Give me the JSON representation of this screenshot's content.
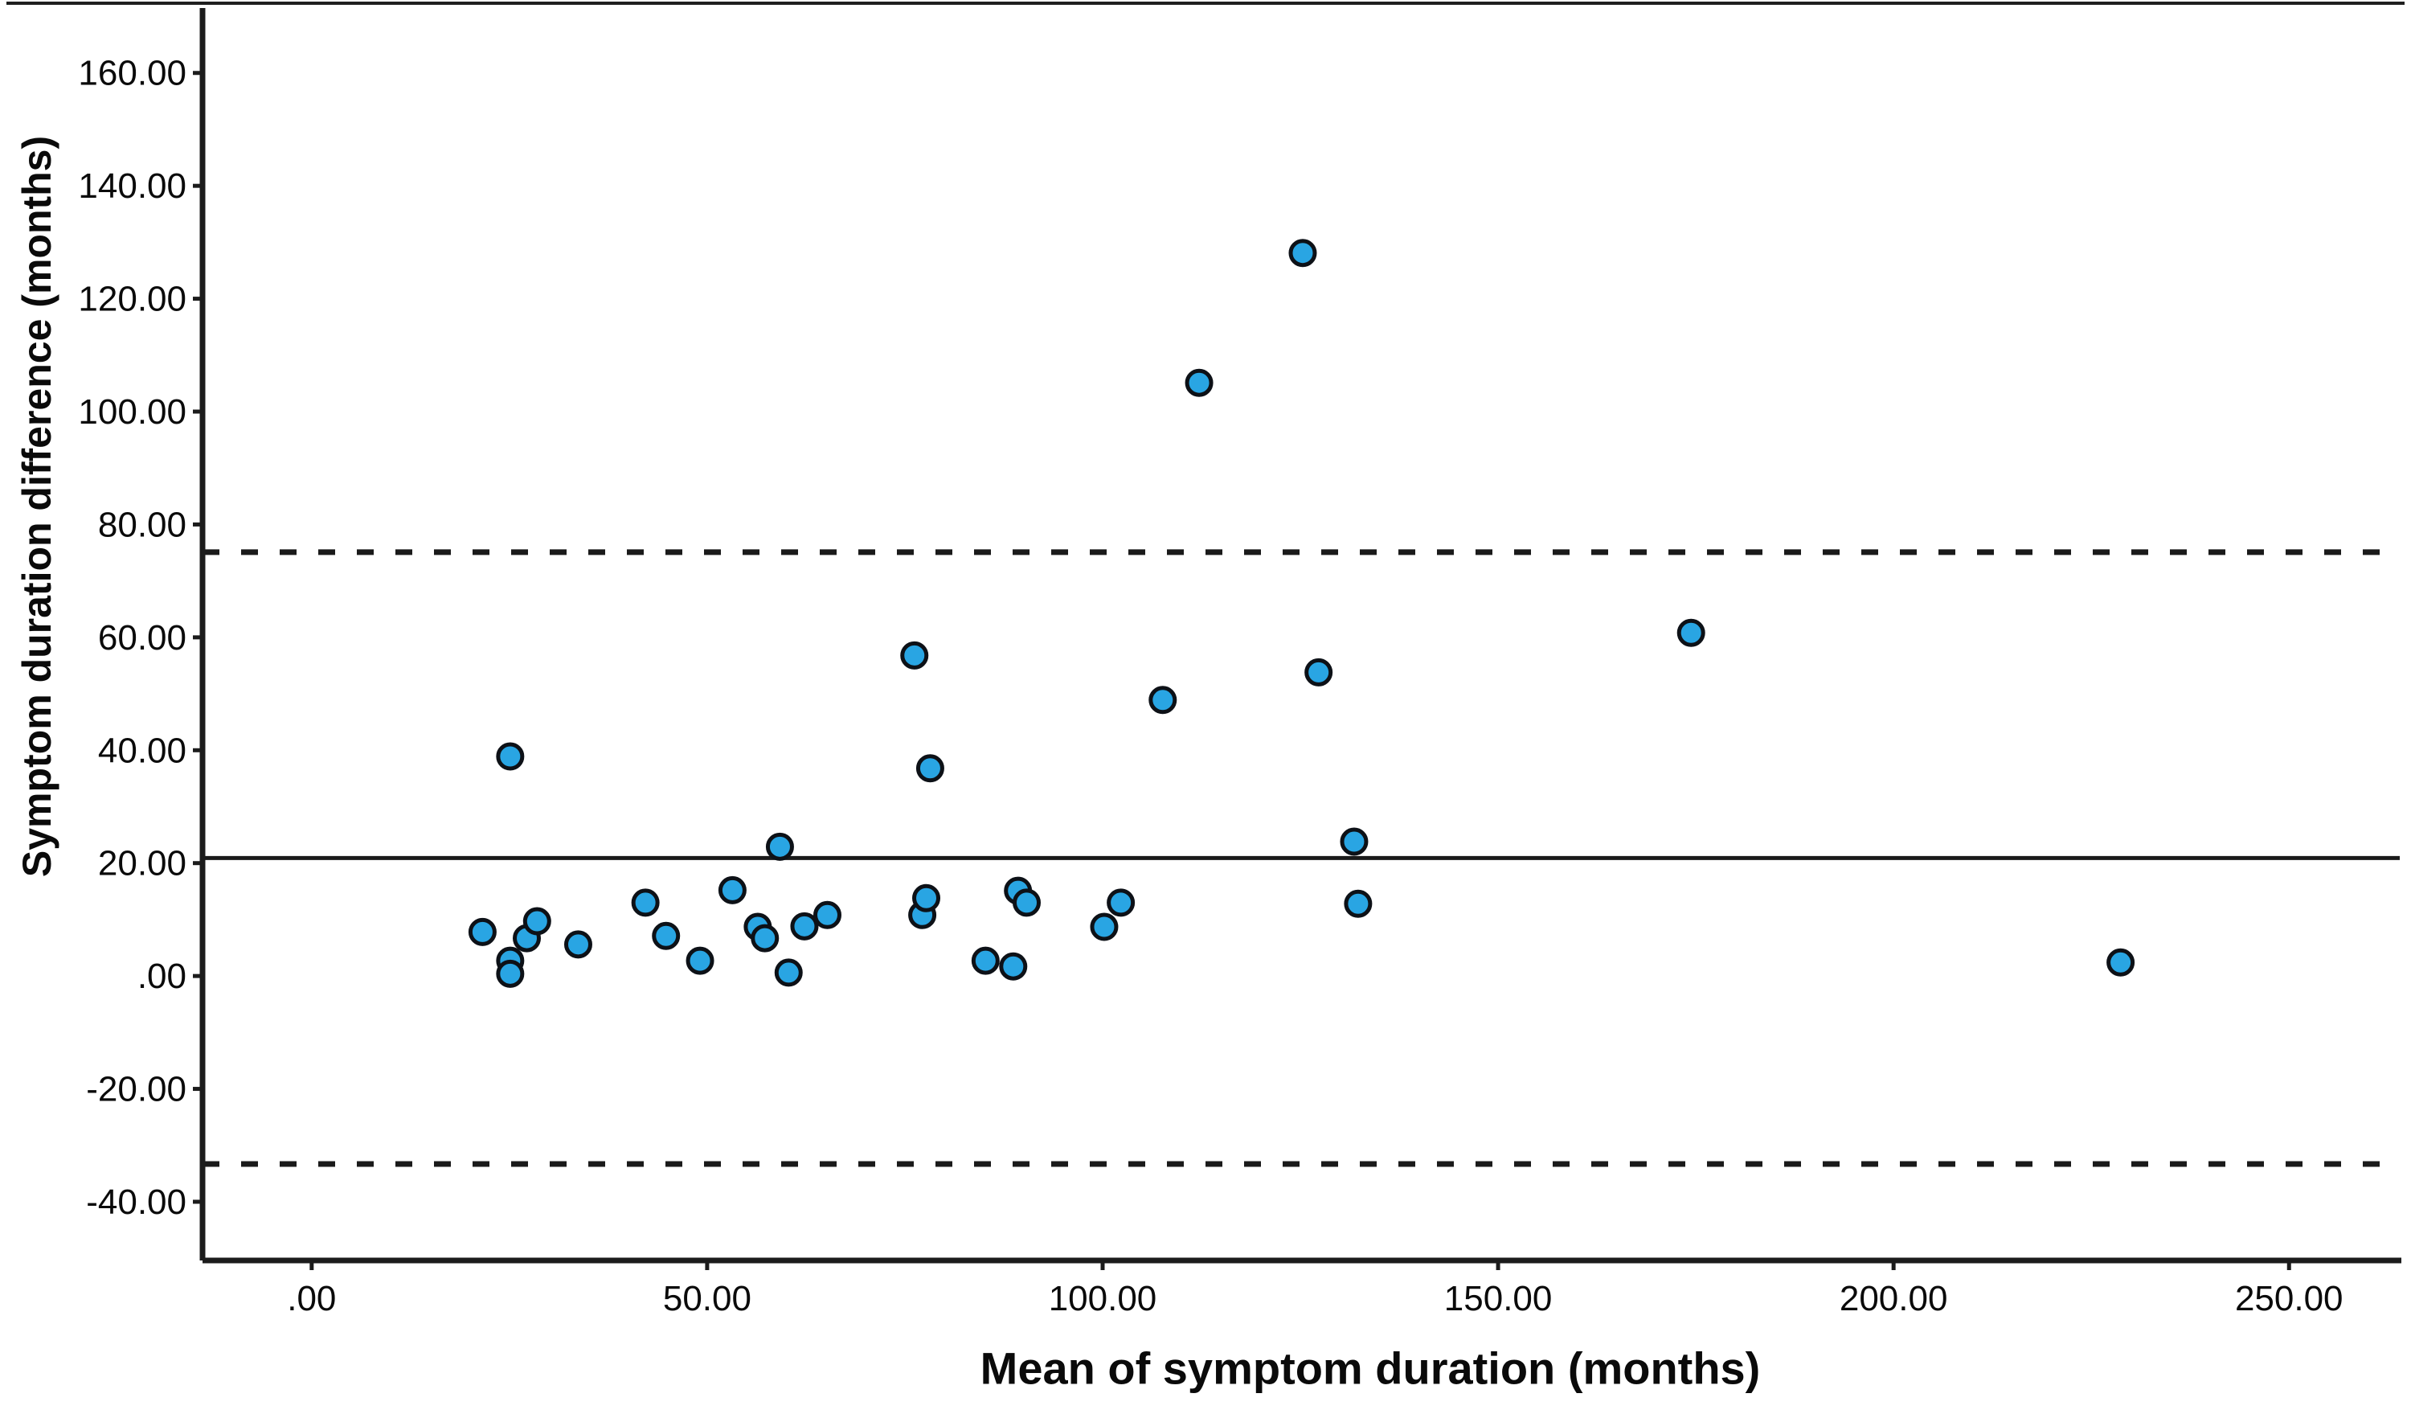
{
  "figure": {
    "background": "#ffffff",
    "top_rule_color": "#1f1f1f"
  },
  "chart_data": {
    "type": "scatter",
    "title": "",
    "xlabel": "Mean of symptom duration (months)",
    "ylabel": "Symptom duration difference (months)",
    "xlim": [
      -13.8,
      264.2
    ],
    "ylim": [
      -50.4,
      171.5
    ],
    "grid": false,
    "legend_position": "none",
    "x_ticks": [
      {
        "value": 0,
        "label": ".00"
      },
      {
        "value": 50,
        "label": "50.00"
      },
      {
        "value": 100,
        "label": "100.00"
      },
      {
        "value": 150,
        "label": "150.00"
      },
      {
        "value": 200,
        "label": "200.00"
      },
      {
        "value": 250,
        "label": "250.00"
      }
    ],
    "y_ticks": [
      {
        "value": 160,
        "label": "160.00"
      },
      {
        "value": 140,
        "label": "140.00"
      },
      {
        "value": 120,
        "label": "120.00"
      },
      {
        "value": 100,
        "label": "100.00"
      },
      {
        "value": 80,
        "label": "80.00"
      },
      {
        "value": 60,
        "label": "60.00"
      },
      {
        "value": 40,
        "label": "40.00"
      },
      {
        "value": 20,
        "label": "20.00"
      },
      {
        "value": 0,
        "label": ".00"
      },
      {
        "value": -20,
        "label": "-20.00"
      },
      {
        "value": -40,
        "label": "-40.00"
      }
    ],
    "reference_lines": [
      {
        "name": "mean-difference",
        "value": 20.9,
        "style": "solid"
      },
      {
        "name": "upper-limit-of-agreement",
        "value": 75.1,
        "style": "dashed"
      },
      {
        "name": "lower-limit-of-agreement",
        "value": -33.3,
        "style": "dashed"
      }
    ],
    "series": [
      {
        "name": "symptom-duration-pairs",
        "points": [
          [
            21.6,
            7.8
          ],
          [
            25.1,
            38.9
          ],
          [
            25.1,
            2.7
          ],
          [
            25.1,
            0.4
          ],
          [
            27.2,
            6.7
          ],
          [
            28.5,
            9.7
          ],
          [
            33.7,
            5.6
          ],
          [
            42.2,
            13.0
          ],
          [
            44.8,
            7.1
          ],
          [
            49.1,
            2.7
          ],
          [
            53.2,
            15.2
          ],
          [
            56.4,
            8.7
          ],
          [
            57.3,
            6.7
          ],
          [
            59.2,
            22.9
          ],
          [
            60.3,
            0.6
          ],
          [
            62.3,
            8.8
          ],
          [
            65.2,
            10.8
          ],
          [
            76.2,
            56.8
          ],
          [
            77.2,
            10.8
          ],
          [
            77.7,
            13.8
          ],
          [
            78.2,
            36.8
          ],
          [
            85.2,
            2.7
          ],
          [
            88.7,
            1.7
          ],
          [
            89.3,
            15.1
          ],
          [
            90.4,
            13.0
          ],
          [
            100.2,
            8.7
          ],
          [
            102.3,
            13.0
          ],
          [
            107.6,
            48.9
          ],
          [
            112.2,
            105.1
          ],
          [
            125.3,
            128.1
          ],
          [
            127.3,
            53.8
          ],
          [
            131.8,
            23.8
          ],
          [
            132.3,
            12.8
          ],
          [
            174.4,
            60.8
          ],
          [
            228.7,
            2.4
          ]
        ]
      }
    ],
    "marker": {
      "fill": "#29A5E3",
      "stroke": "#0D1117",
      "radius": 15,
      "stroke_width": 5
    },
    "axis_color": "#1c1c1c",
    "line_color": "#1a1a1a",
    "layout": {
      "plot_left": 252,
      "plot_right": 2988,
      "plot_top": 10,
      "plot_bottom": 1568,
      "tick_length": 12,
      "dash_pattern": "21 27"
    }
  }
}
